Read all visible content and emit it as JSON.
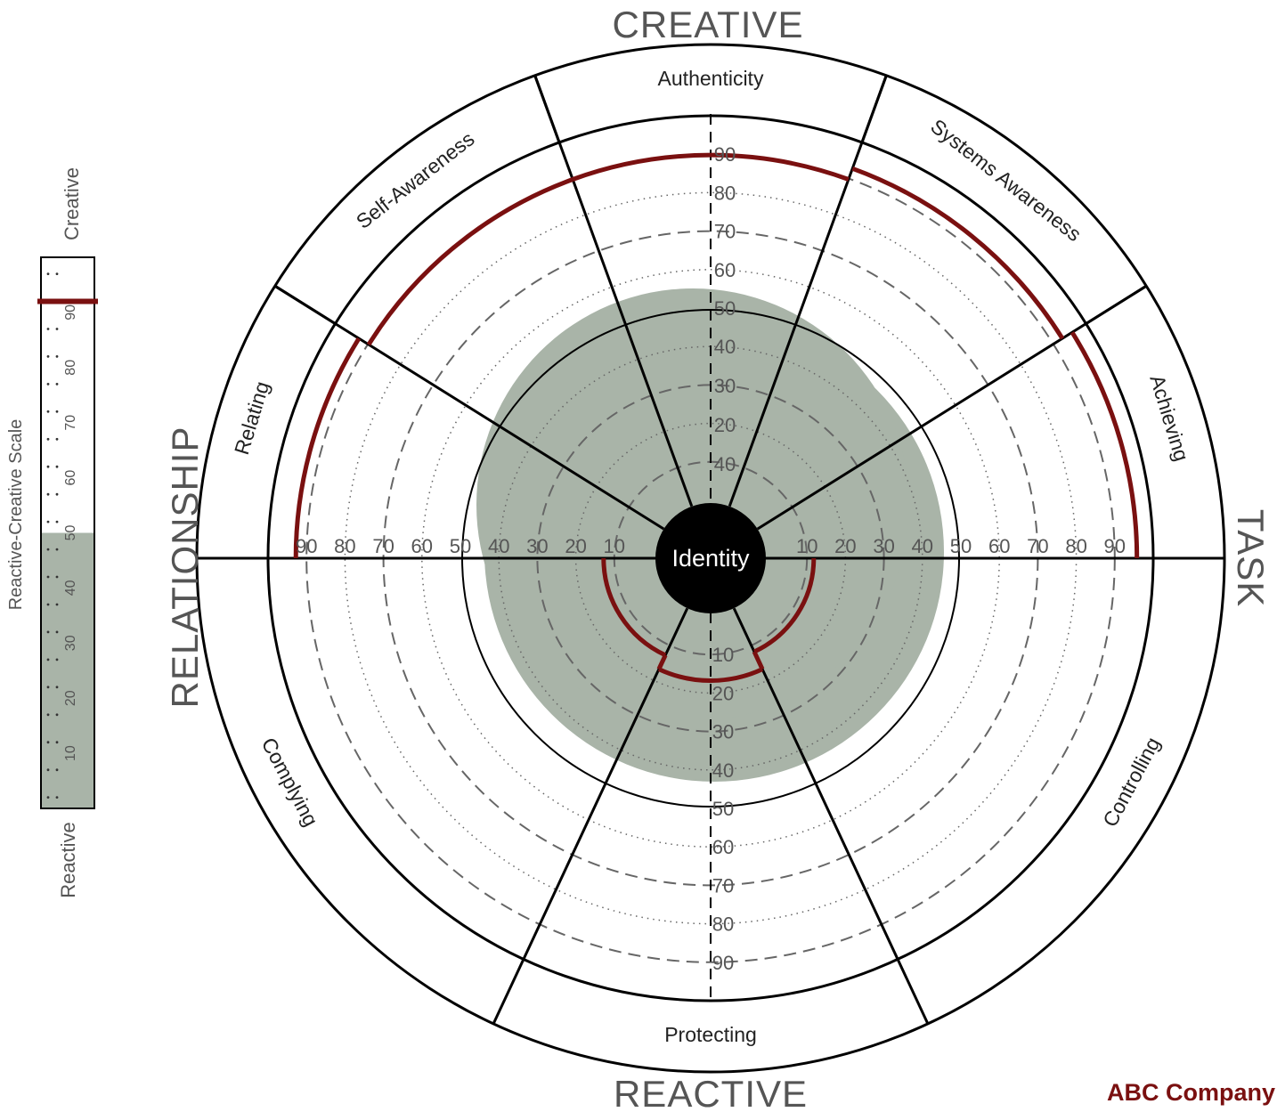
{
  "company": "ABC Company",
  "colors": {
    "accent": "#7a1010",
    "fill": "#a9b4a8",
    "ink": "#000000",
    "grid": "#666666"
  },
  "chart_data": {
    "type": "circumplex",
    "center_label": "Identity",
    "quadrant_labels": {
      "top": "CREATIVE",
      "bottom": "REACTIVE",
      "left": "RELATIONSHIP",
      "right": "TASK"
    },
    "segments": [
      {
        "name": "Authenticity",
        "group": "Creative"
      },
      {
        "name": "Systems Awareness",
        "group": "Creative"
      },
      {
        "name": "Achieving",
        "group": "Creative"
      },
      {
        "name": "Controlling",
        "group": "Reactive"
      },
      {
        "name": "Protecting",
        "group": "Reactive"
      },
      {
        "name": "Complying",
        "group": "Reactive"
      },
      {
        "name": "Relating",
        "group": "Creative"
      },
      {
        "name": "Self-Awareness",
        "group": "Creative"
      }
    ],
    "radial_ticks": [
      "10",
      "20",
      "30",
      "40",
      "50",
      "60",
      "70",
      "80",
      "90"
    ],
    "inner_ticks_top": [
      "40",
      "30",
      "20"
    ],
    "creative_scores": [
      {
        "segment": "Authenticity",
        "value": 90
      },
      {
        "segment": "Systems Awareness",
        "value": 93
      },
      {
        "segment": "Achieving",
        "value": 96
      },
      {
        "segment": "Relating",
        "value": 93
      },
      {
        "segment": "Self-Awareness",
        "value": 90
      }
    ],
    "reactive_scores": [
      {
        "segment": "Controlling",
        "value": 12
      },
      {
        "segment": "Protecting",
        "value": 17
      },
      {
        "segment": "Complying",
        "value": 13
      }
    ],
    "shaded_zone_percentile": 50,
    "scale": {
      "title": "Reactive-Creative Scale",
      "top_label": "Creative",
      "bottom_label": "Reactive",
      "ticks": [
        "10",
        "20",
        "30",
        "40",
        "50",
        "60",
        "70",
        "80",
        "90"
      ],
      "marker_value": 92,
      "shaded_below": 50
    }
  }
}
